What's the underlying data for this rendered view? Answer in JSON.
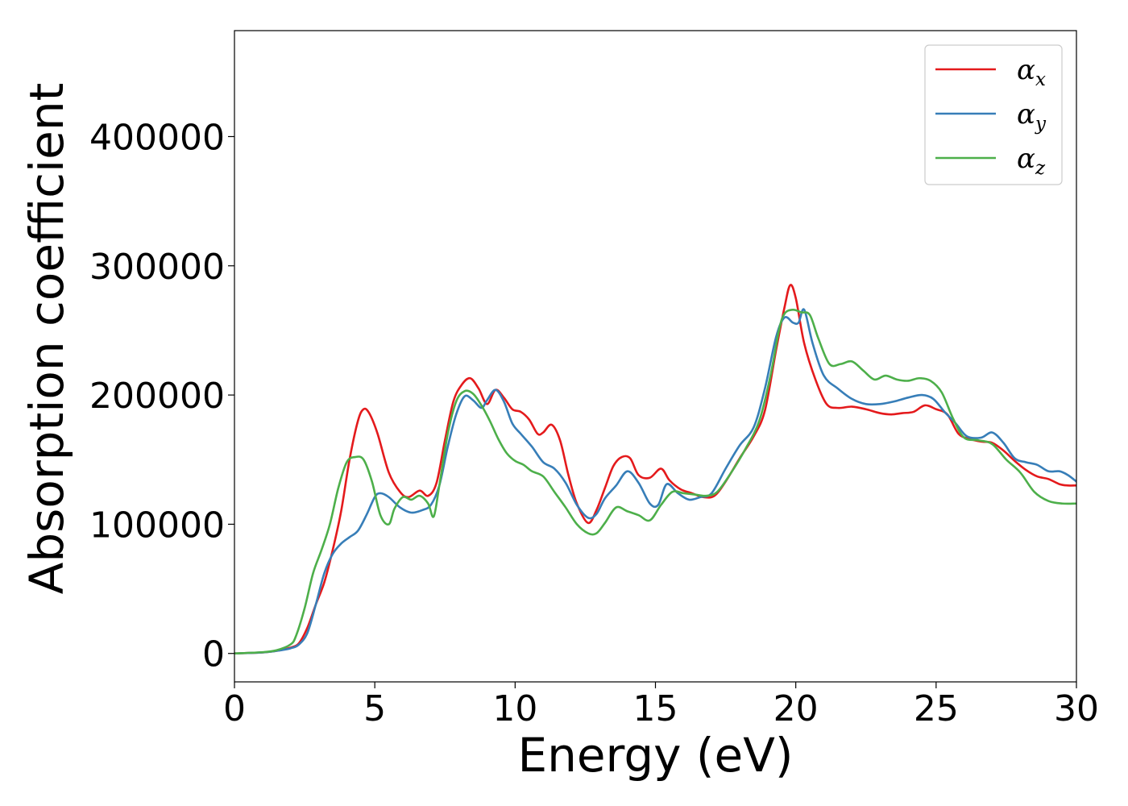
{
  "chart_data": {
    "type": "line",
    "title": "",
    "xlabel": "Energy (eV)",
    "ylabel": "Absorption coefficient",
    "xlim": [
      0,
      30
    ],
    "ylim": [
      -22000,
      482000
    ],
    "xticks": [
      0,
      5,
      10,
      15,
      20,
      25,
      30
    ],
    "yticks": [
      0,
      100000,
      200000,
      300000,
      400000
    ],
    "grid": false,
    "legend_position": "top-right",
    "series": [
      {
        "name": "αx",
        "symbol": "α",
        "subscript": "x",
        "color": "#e41a1c",
        "x": [
          0,
          1,
          1.5,
          2,
          2.3,
          2.6,
          2.9,
          3.2,
          3.5,
          3.8,
          4.1,
          4.4,
          4.6,
          4.8,
          5.1,
          5.5,
          5.9,
          6.2,
          6.6,
          6.9,
          7.2,
          7.5,
          7.8,
          8.1,
          8.4,
          8.7,
          9.0,
          9.3,
          9.6,
          9.9,
          10.2,
          10.5,
          10.8,
          11.0,
          11.3,
          11.6,
          11.9,
          12.2,
          12.6,
          12.9,
          13.2,
          13.5,
          13.8,
          14.1,
          14.4,
          14.8,
          15.2,
          15.5,
          15.9,
          16.3,
          16.7,
          17.1,
          17.5,
          18.0,
          18.5,
          18.9,
          19.3,
          19.6,
          19.8,
          20.0,
          20.3,
          20.7,
          21.1,
          21.5,
          22.0,
          22.5,
          23.0,
          23.4,
          23.8,
          24.2,
          24.6,
          25.0,
          25.4,
          25.8,
          26.2,
          26.6,
          27.0,
          27.4,
          27.8,
          28.2,
          28.6,
          29.0,
          29.4,
          29.7,
          30.0
        ],
        "y": [
          0,
          800,
          2000,
          4500,
          8000,
          20000,
          38000,
          55000,
          80000,
          110000,
          150000,
          180000,
          189000,
          186000,
          170000,
          140000,
          125000,
          121000,
          126000,
          122000,
          132000,
          165000,
          195000,
          208000,
          213000,
          205000,
          193000,
          204000,
          198000,
          189000,
          187000,
          181000,
          170000,
          171000,
          177000,
          165000,
          138000,
          116000,
          101000,
          111000,
          128000,
          145000,
          152000,
          151000,
          138000,
          136000,
          143000,
          134000,
          127000,
          124000,
          121000,
          122000,
          133000,
          151000,
          168000,
          188000,
          235000,
          268000,
          285000,
          275000,
          240000,
          212000,
          193000,
          190000,
          191000,
          189000,
          186000,
          185000,
          186000,
          187000,
          192000,
          189000,
          185000,
          170000,
          166000,
          164000,
          163000,
          157000,
          149000,
          142000,
          137000,
          135000,
          131000,
          130000,
          130000
        ]
      },
      {
        "name": "αy",
        "symbol": "α",
        "subscript": "y",
        "color": "#377eb8",
        "x": [
          0,
          1,
          1.5,
          2,
          2.3,
          2.6,
          2.9,
          3.2,
          3.5,
          3.8,
          4.1,
          4.4,
          4.7,
          5.0,
          5.2,
          5.5,
          5.9,
          6.3,
          6.7,
          7.0,
          7.3,
          7.6,
          7.9,
          8.2,
          8.5,
          8.8,
          9.0,
          9.3,
          9.6,
          9.9,
          10.2,
          10.6,
          11.0,
          11.4,
          11.8,
          12.2,
          12.6,
          12.9,
          13.2,
          13.6,
          14.0,
          14.4,
          14.8,
          15.1,
          15.4,
          15.8,
          16.2,
          16.6,
          17.0,
          17.5,
          18.0,
          18.5,
          18.9,
          19.3,
          19.6,
          19.9,
          20.1,
          20.3,
          20.6,
          21.0,
          21.5,
          22.0,
          22.5,
          23.0,
          23.5,
          24.0,
          24.5,
          24.9,
          25.3,
          25.7,
          26.1,
          26.6,
          27.0,
          27.4,
          27.8,
          28.2,
          28.6,
          29.0,
          29.4,
          29.7,
          30.0
        ],
        "y": [
          0,
          800,
          2000,
          4000,
          7000,
          16000,
          38000,
          62000,
          77000,
          85000,
          90000,
          95000,
          107000,
          121000,
          124000,
          121000,
          113000,
          109000,
          111000,
          115000,
          130000,
          160000,
          185000,
          199000,
          196000,
          190000,
          196000,
          204000,
          195000,
          178000,
          170000,
          160000,
          148000,
          143000,
          132000,
          115000,
          105000,
          108000,
          120000,
          130000,
          141000,
          132000,
          116000,
          115000,
          131000,
          124000,
          119000,
          121000,
          124000,
          143000,
          161000,
          175000,
          205000,
          245000,
          260000,
          256000,
          256000,
          266000,
          240000,
          215000,
          205000,
          197000,
          193000,
          193000,
          195000,
          198000,
          200000,
          197000,
          187000,
          178000,
          168000,
          167000,
          171000,
          163000,
          151000,
          148000,
          146000,
          141000,
          141000,
          138000,
          133000
        ]
      },
      {
        "name": "αz",
        "symbol": "α",
        "subscript": "z",
        "color": "#4daf4a",
        "x": [
          0,
          1,
          1.5,
          2,
          2.2,
          2.5,
          2.8,
          3.1,
          3.4,
          3.7,
          4.0,
          4.3,
          4.6,
          4.9,
          5.2,
          5.5,
          5.7,
          6.0,
          6.3,
          6.6,
          6.9,
          7.1,
          7.3,
          7.6,
          7.9,
          8.2,
          8.5,
          8.8,
          9.1,
          9.4,
          9.7,
          10.0,
          10.3,
          10.6,
          11.0,
          11.4,
          11.8,
          12.2,
          12.6,
          12.9,
          13.2,
          13.6,
          14.0,
          14.4,
          14.8,
          15.2,
          15.6,
          16.0,
          16.4,
          16.8,
          17.2,
          17.7,
          18.2,
          18.7,
          19.1,
          19.4,
          19.6,
          19.9,
          20.2,
          20.5,
          20.8,
          21.2,
          21.6,
          22.0,
          22.4,
          22.8,
          23.2,
          23.6,
          24.0,
          24.4,
          24.8,
          25.2,
          25.6,
          26.0,
          26.5,
          27.0,
          27.5,
          28.0,
          28.5,
          29.0,
          29.5,
          30.0
        ],
        "y": [
          0,
          1000,
          2500,
          7000,
          14000,
          35000,
          62000,
          80000,
          100000,
          128000,
          148000,
          152000,
          150000,
          133000,
          107000,
          100000,
          112000,
          121000,
          119000,
          122000,
          116000,
          106000,
          130000,
          170000,
          195000,
          203000,
          201000,
          192000,
          180000,
          166000,
          155000,
          149000,
          146000,
          141000,
          137000,
          125000,
          113000,
          100000,
          93000,
          93000,
          101000,
          113000,
          110000,
          107000,
          103000,
          115000,
          125000,
          124000,
          123000,
          122000,
          125000,
          140000,
          158000,
          180000,
          215000,
          250000,
          263000,
          266000,
          264000,
          262000,
          244000,
          224000,
          224000,
          226000,
          219000,
          212000,
          215000,
          212000,
          211000,
          213000,
          211000,
          202000,
          182000,
          167000,
          165000,
          162000,
          150000,
          140000,
          125000,
          118000,
          116000,
          116000
        ]
      }
    ]
  }
}
